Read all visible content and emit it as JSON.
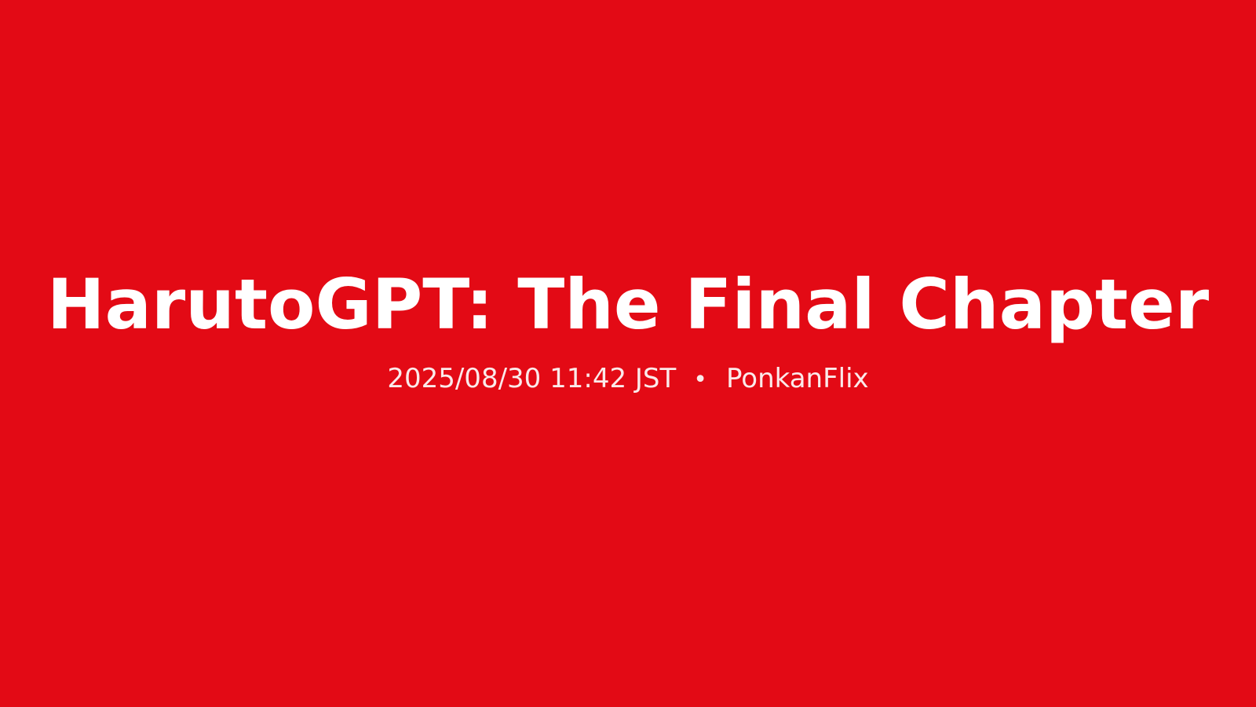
{
  "theme": {
    "background": "#e30a15",
    "text": "#ffffff"
  },
  "title_card": {
    "title": "HarutoGPT: The Final Chapter",
    "timestamp": "2025/08/30 11:42 JST",
    "separator": "•",
    "channel": "PonkanFlix"
  }
}
